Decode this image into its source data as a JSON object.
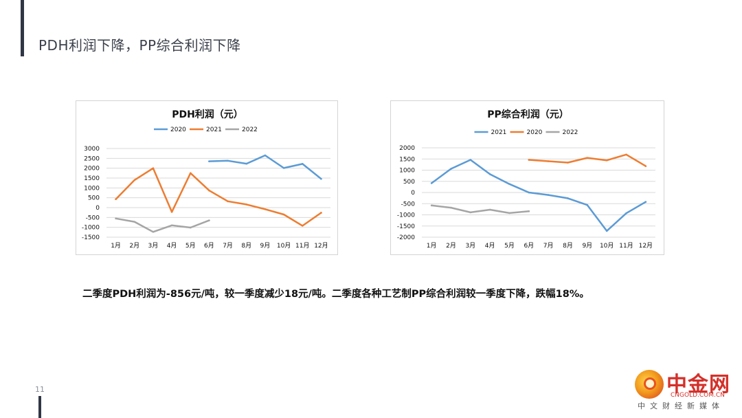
{
  "slide": {
    "title": "PDH利润下降，PP综合利润下降",
    "page_number": "11",
    "summary": "二季度PDH利润为-856元/吨，较一季度减少18元/吨。二季度各种工艺制PP综合利润较一季度下降，跌幅18%。"
  },
  "logo": {
    "name": "中金网",
    "domain": "CNGOLD.COM.CN",
    "subtitle": "中文财经新媒体"
  },
  "chart_data": [
    {
      "type": "line",
      "title": "PDH利润（元）",
      "categories": [
        "1月",
        "2月",
        "3月",
        "4月",
        "5月",
        "6月",
        "7月",
        "8月",
        "9月",
        "10月",
        "11月",
        "12月"
      ],
      "ylim": [
        -1500,
        3000
      ],
      "yticks": [
        3000,
        2500,
        2000,
        1500,
        1000,
        500,
        0,
        -500,
        -1000,
        -1500
      ],
      "grid": true,
      "legend_position": "top",
      "series": [
        {
          "name": "2020",
          "color": "#5b9bd5",
          "values": [
            null,
            null,
            null,
            null,
            null,
            2350,
            2380,
            2230,
            2650,
            2010,
            2220,
            1460
          ]
        },
        {
          "name": "2021",
          "color": "#ed7d31",
          "values": [
            430,
            1400,
            2000,
            -220,
            1750,
            870,
            320,
            160,
            -80,
            -350,
            -920,
            -260
          ]
        },
        {
          "name": "2022",
          "color": "#a5a5a5",
          "values": [
            -550,
            -720,
            -1230,
            -900,
            -1010,
            -650,
            null,
            null,
            null,
            null,
            null,
            null
          ]
        }
      ]
    },
    {
      "type": "line",
      "title": "PP综合利润（元）",
      "categories": [
        "1月",
        "2月",
        "3月",
        "4月",
        "5月",
        "6月",
        "7月",
        "8月",
        "9月",
        "10月",
        "11月",
        "12月"
      ],
      "ylim": [
        -2000,
        2000
      ],
      "yticks": [
        2000,
        1500,
        1000,
        500,
        0,
        -500,
        -1000,
        -1500,
        -2000
      ],
      "grid": true,
      "legend_position": "top",
      "series": [
        {
          "name": "2021",
          "color": "#5b9bd5",
          "values": [
            420,
            1060,
            1460,
            820,
            380,
            0,
            -110,
            -260,
            -560,
            -1720,
            -930,
            -420
          ]
        },
        {
          "name": "2020",
          "color": "#ed7d31",
          "values": [
            null,
            null,
            null,
            null,
            null,
            1460,
            1400,
            1340,
            1550,
            1440,
            1700,
            1180
          ]
        },
        {
          "name": "2022",
          "color": "#a5a5a5",
          "values": [
            -580,
            -680,
            -890,
            -770,
            -920,
            -840,
            null,
            null,
            null,
            null,
            null,
            null
          ]
        }
      ]
    }
  ]
}
